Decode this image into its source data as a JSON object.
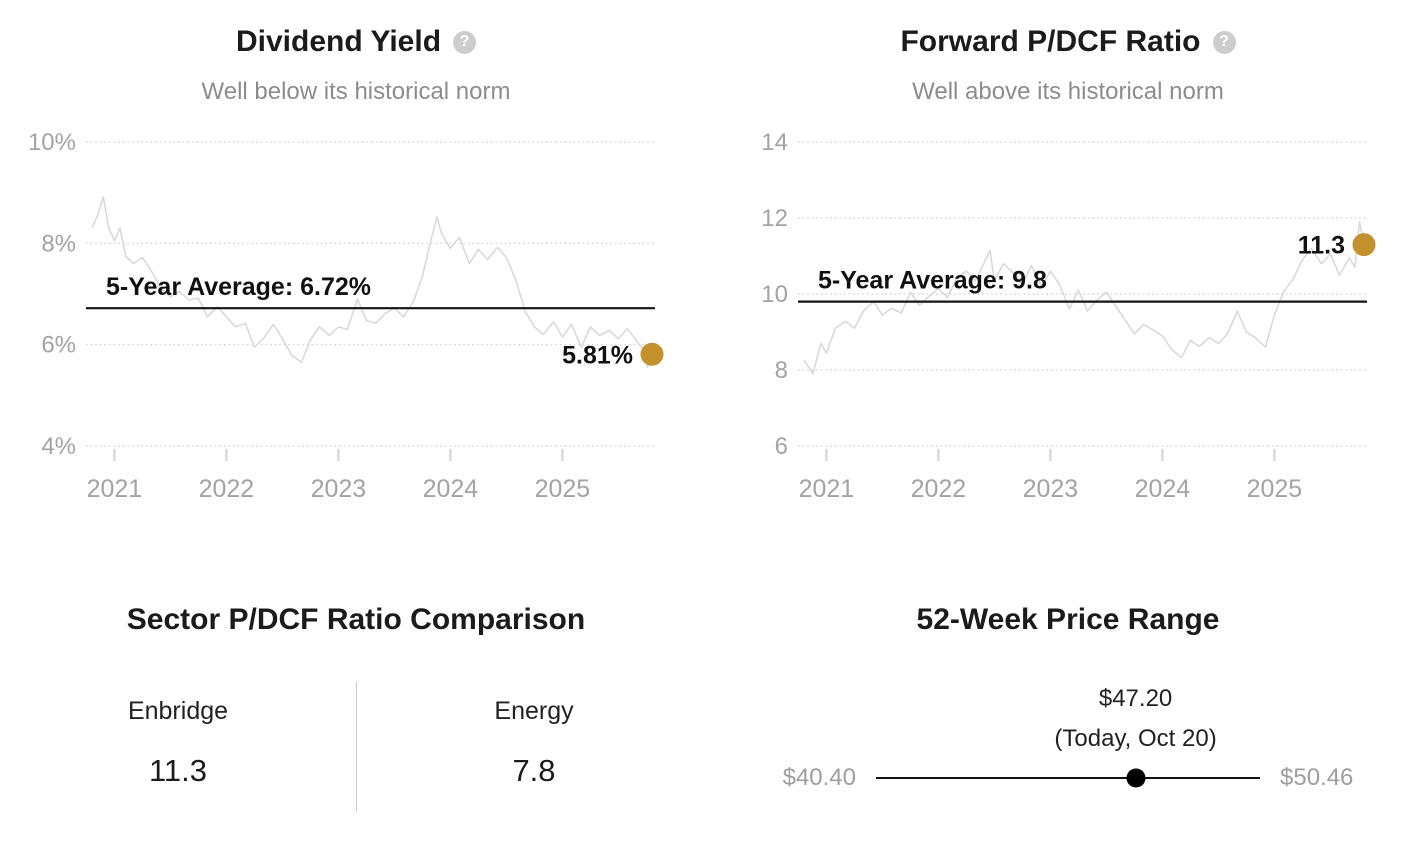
{
  "icons": {
    "help_glyph": "?"
  },
  "colors": {
    "accent_dot": "#c4912f",
    "series_line": "#d9d9d9",
    "average_line": "#141414",
    "gridline": "#d6d6d6",
    "axis_label": "#a3a3a3",
    "tick_mark": "#d2d2d2",
    "annotation": "#111111"
  },
  "chart_data": [
    {
      "type": "line",
      "title": "Dividend Yield",
      "subtitle": "Well below its historical norm",
      "y_min": 4,
      "y_max": 10,
      "x_min": 2020.8,
      "x_max": 2025.8,
      "grid": "dotted",
      "y_ticks": [
        {
          "value": 10,
          "label": "10%"
        },
        {
          "value": 8,
          "label": "8%"
        },
        {
          "value": 6,
          "label": "6%"
        },
        {
          "value": 4,
          "label": "4%"
        }
      ],
      "x_ticks": [
        {
          "value": 2021,
          "label": "2021"
        },
        {
          "value": 2022,
          "label": "2022"
        },
        {
          "value": 2023,
          "label": "2023"
        },
        {
          "value": 2024,
          "label": "2024"
        },
        {
          "value": 2025,
          "label": "2025"
        }
      ],
      "average": {
        "value": 6.72,
        "label": "5-Year Average: 6.72%"
      },
      "end_point": {
        "value": 5.81,
        "label": "5.81%"
      },
      "series": {
        "name": "Dividend Yield (%)",
        "x": [
          2020.8,
          2020.85,
          2020.9,
          2020.95,
          2021.0,
          2021.05,
          2021.1,
          2021.17,
          2021.25,
          2021.33,
          2021.42,
          2021.5,
          2021.58,
          2021.67,
          2021.75,
          2021.83,
          2021.92,
          2022.0,
          2022.08,
          2022.17,
          2022.25,
          2022.33,
          2022.42,
          2022.5,
          2022.58,
          2022.67,
          2022.75,
          2022.83,
          2022.92,
          2023.0,
          2023.08,
          2023.17,
          2023.25,
          2023.33,
          2023.42,
          2023.5,
          2023.58,
          2023.67,
          2023.75,
          2023.83,
          2023.88,
          2023.92,
          2024.0,
          2024.08,
          2024.17,
          2024.25,
          2024.33,
          2024.42,
          2024.5,
          2024.58,
          2024.67,
          2024.75,
          2024.83,
          2024.92,
          2025.0,
          2025.08,
          2025.17,
          2025.25,
          2025.33,
          2025.42,
          2025.5,
          2025.58,
          2025.67,
          2025.72,
          2025.76,
          2025.8
        ],
        "y": [
          8.3,
          8.55,
          8.92,
          8.3,
          8.05,
          8.3,
          7.75,
          7.6,
          7.72,
          7.45,
          7.1,
          6.95,
          7.05,
          6.88,
          6.92,
          6.55,
          6.75,
          6.55,
          6.35,
          6.42,
          5.95,
          6.12,
          6.4,
          6.12,
          5.8,
          5.65,
          6.1,
          6.35,
          6.18,
          6.35,
          6.3,
          6.9,
          6.48,
          6.42,
          6.62,
          6.72,
          6.55,
          6.85,
          7.35,
          8.1,
          8.52,
          8.2,
          7.9,
          8.12,
          7.6,
          7.88,
          7.68,
          7.92,
          7.72,
          7.3,
          6.65,
          6.35,
          6.2,
          6.45,
          6.15,
          6.4,
          5.95,
          6.35,
          6.18,
          6.28,
          6.12,
          6.32,
          6.05,
          5.92,
          5.55,
          5.81
        ]
      }
    },
    {
      "type": "line",
      "title": "Forward P/DCF Ratio",
      "subtitle": "Well above its historical norm",
      "y_min": 6,
      "y_max": 14,
      "x_min": 2020.8,
      "x_max": 2025.8,
      "grid": "dotted",
      "y_ticks": [
        {
          "value": 14,
          "label": "14"
        },
        {
          "value": 12,
          "label": "12"
        },
        {
          "value": 10,
          "label": "10"
        },
        {
          "value": 8,
          "label": "8"
        },
        {
          "value": 6,
          "label": "6"
        }
      ],
      "x_ticks": [
        {
          "value": 2021,
          "label": "2021"
        },
        {
          "value": 2022,
          "label": "2022"
        },
        {
          "value": 2023,
          "label": "2023"
        },
        {
          "value": 2024,
          "label": "2024"
        },
        {
          "value": 2025,
          "label": "2025"
        }
      ],
      "average": {
        "value": 9.8,
        "label": "5-Year Average: 9.8"
      },
      "end_point": {
        "value": 11.3,
        "label": "11.3"
      },
      "series": {
        "name": "Forward P/DCF",
        "x": [
          2020.8,
          2020.85,
          2020.88,
          2020.95,
          2021.0,
          2021.08,
          2021.17,
          2021.25,
          2021.33,
          2021.42,
          2021.5,
          2021.58,
          2021.67,
          2021.75,
          2021.83,
          2021.92,
          2022.0,
          2022.08,
          2022.17,
          2022.25,
          2022.33,
          2022.42,
          2022.46,
          2022.5,
          2022.58,
          2022.67,
          2022.75,
          2022.83,
          2022.92,
          2023.0,
          2023.08,
          2023.17,
          2023.25,
          2023.33,
          2023.42,
          2023.5,
          2023.58,
          2023.67,
          2023.75,
          2023.83,
          2023.92,
          2024.0,
          2024.08,
          2024.17,
          2024.25,
          2024.33,
          2024.42,
          2024.5,
          2024.58,
          2024.67,
          2024.75,
          2024.83,
          2024.92,
          2025.0,
          2025.08,
          2025.17,
          2025.25,
          2025.33,
          2025.42,
          2025.5,
          2025.58,
          2025.67,
          2025.72,
          2025.76,
          2025.8
        ],
        "y": [
          8.25,
          8.05,
          7.9,
          8.7,
          8.45,
          9.1,
          9.28,
          9.1,
          9.55,
          9.8,
          9.45,
          9.62,
          9.5,
          10.05,
          9.7,
          9.95,
          10.15,
          9.9,
          10.45,
          10.6,
          10.35,
          10.9,
          11.15,
          10.35,
          10.8,
          10.55,
          10.25,
          10.75,
          10.2,
          10.6,
          10.25,
          9.6,
          10.1,
          9.55,
          9.85,
          10.05,
          9.7,
          9.3,
          8.95,
          9.2,
          9.05,
          8.9,
          8.55,
          8.32,
          8.78,
          8.62,
          8.85,
          8.7,
          8.95,
          9.55,
          9.0,
          8.85,
          8.6,
          9.45,
          10.05,
          10.4,
          10.9,
          11.2,
          10.8,
          11.05,
          10.5,
          10.95,
          10.7,
          11.9,
          11.3
        ]
      }
    }
  ],
  "sector_comparison": {
    "title": "Sector P/DCF Ratio Comparison",
    "columns": [
      {
        "label": "Enbridge",
        "value": "11.3"
      },
      {
        "label": "Energy",
        "value": "7.8"
      }
    ]
  },
  "price_range": {
    "title": "52-Week Price Range",
    "current_price": "$47.20",
    "current_label": "(Today, Oct 20)",
    "low_label": "$40.40",
    "high_label": "$50.46",
    "low_value": 40.4,
    "high_value": 50.46,
    "current_value": 47.2
  }
}
